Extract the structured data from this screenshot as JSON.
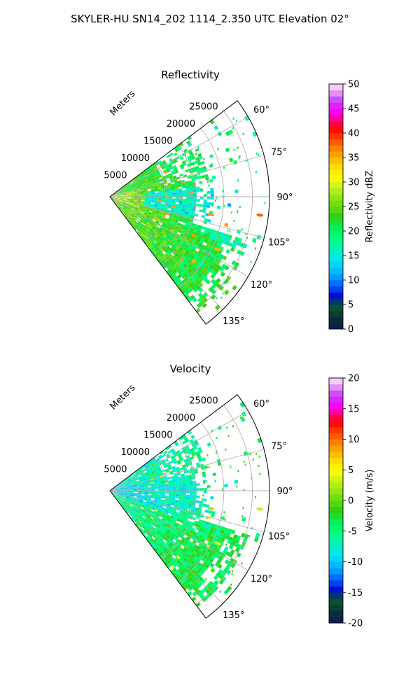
{
  "figure": {
    "suptitle": "SKYLER-HU  SN14_202  1114_2.350 UTC Elevation 02°"
  },
  "chart_data": [
    {
      "type": "heatmap",
      "title": "Reflectivity",
      "range_label": "Meters",
      "range_ticks": [
        5000,
        10000,
        15000,
        20000,
        25000
      ],
      "range_tick_labels": [
        "5000",
        "10000",
        "15000",
        "20000",
        "25000"
      ],
      "r_max": 28000,
      "azimuth_range_deg": [
        53,
        143
      ],
      "azimuth_ticks": [
        60,
        75,
        90,
        105,
        120,
        135
      ],
      "azimuth_tick_labels": [
        "60°",
        "75°",
        "90°",
        "105°",
        "120°",
        "135°"
      ],
      "colorbar": {
        "label": "Reflectivity dBZ",
        "vmin": 0,
        "vmax": 50,
        "ticks": [
          0,
          5,
          10,
          15,
          20,
          25,
          30,
          35,
          40,
          45,
          50
        ],
        "tick_labels": [
          "0",
          "5",
          "10",
          "15",
          "20",
          "25",
          "30",
          "35",
          "40",
          "45",
          "50"
        ]
      },
      "field": {
        "near_range_value": 28,
        "far_range_value": 18,
        "north_sector_value": 20,
        "east_gap_value": 13,
        "south_sector_value": 24,
        "speckle_values": [
          35,
          36,
          22,
          18
        ],
        "scattered_echo_value": 20,
        "noted_features": [
          {
            "azimuth_deg": 116,
            "range_m": 21000,
            "value": 35
          },
          {
            "azimuth_deg": 100,
            "range_m": 18000,
            "value": 36
          },
          {
            "azimuth_deg": 97,
            "range_m": 26500,
            "value": 38
          }
        ]
      },
      "grid": true
    },
    {
      "type": "heatmap",
      "title": "Velocity",
      "range_label": "Meters",
      "range_ticks": [
        5000,
        10000,
        15000,
        20000,
        25000
      ],
      "range_tick_labels": [
        "5000",
        "10000",
        "15000",
        "20000",
        "25000"
      ],
      "r_max": 28000,
      "azimuth_range_deg": [
        53,
        143
      ],
      "azimuth_ticks": [
        60,
        75,
        90,
        105,
        120,
        135
      ],
      "azimuth_tick_labels": [
        "60°",
        "75°",
        "90°",
        "105°",
        "120°",
        "135°"
      ],
      "colorbar": {
        "label": "Velocity (m/s)",
        "vmin": -20,
        "vmax": 20,
        "ticks": [
          -20,
          -15,
          -10,
          -5,
          0,
          5,
          10,
          15,
          20
        ],
        "tick_labels": [
          "-20",
          "-15",
          "-10",
          "-5",
          "0",
          "5",
          "10",
          "15",
          "20"
        ]
      },
      "field": {
        "near_range_value": -10,
        "far_range_value": -4,
        "north_sector_value": -6,
        "east_gap_value": -8,
        "south_sector_value": -3,
        "speckle_values": [
          5,
          0,
          -2,
          -6
        ],
        "scattered_echo_value": -2,
        "noted_features": [
          {
            "azimuth_deg": 116,
            "range_m": 21000,
            "value": 4
          },
          {
            "azimuth_deg": 100,
            "range_m": 18000,
            "value": 2
          },
          {
            "azimuth_deg": 97,
            "range_m": 26500,
            "value": 3
          }
        ]
      },
      "grid": true
    }
  ]
}
